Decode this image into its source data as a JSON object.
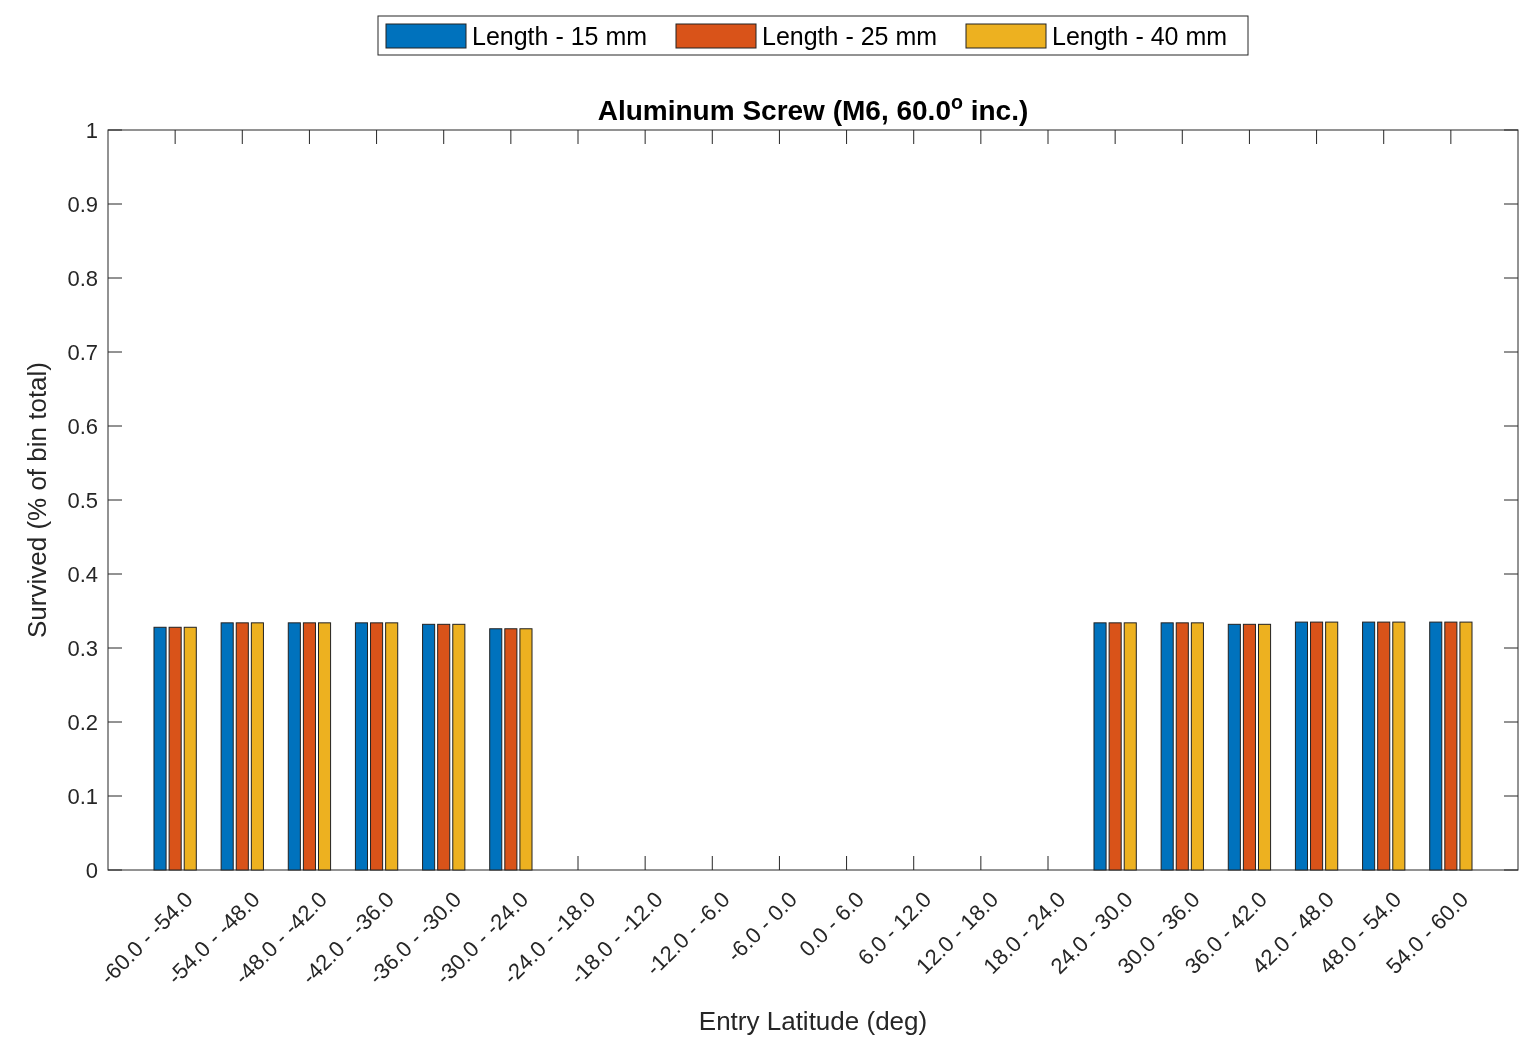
{
  "chart_data": {
    "type": "bar",
    "title": "Aluminum Screw (M6, 60.0$^{o}$ inc.)",
    "xlabel": "Entry Latitude (deg)",
    "ylabel": "Survived (% of bin total)",
    "categories": [
      "-60.0 - -54.0",
      "-54.0 - -48.0",
      "-48.0 - -42.0",
      "-42.0 - -36.0",
      "-36.0 - -30.0",
      "-30.0 - -24.0",
      "-24.0 - -18.0",
      "-18.0 - -12.0",
      "-12.0 - -6.0",
      "-6.0 - 0.0",
      "0.0 - 6.0",
      "6.0 - 12.0",
      "12.0 - 18.0",
      "18.0 - 24.0",
      "24.0 - 30.0",
      "30.0 - 36.0",
      "36.0 - 42.0",
      "42.0 - 48.0",
      "48.0 - 54.0",
      "54.0 - 60.0"
    ],
    "series": [
      {
        "name": "Length - 15 mm",
        "color": "#0072bd",
        "values": [
          0.328,
          0.334,
          0.334,
          0.334,
          0.332,
          0.326,
          0,
          0,
          0,
          0,
          0,
          0,
          0,
          0,
          0.334,
          0.334,
          0.332,
          0.335,
          0.335,
          0.335
        ]
      },
      {
        "name": "Length - 25 mm",
        "color": "#d95319",
        "values": [
          0.328,
          0.334,
          0.334,
          0.334,
          0.332,
          0.326,
          0,
          0,
          0,
          0,
          0,
          0,
          0,
          0,
          0.334,
          0.334,
          0.332,
          0.335,
          0.335,
          0.335
        ]
      },
      {
        "name": "Length - 40 mm",
        "color": "#edb120",
        "values": [
          0.328,
          0.334,
          0.334,
          0.334,
          0.332,
          0.326,
          0,
          0,
          0,
          0,
          0,
          0,
          0,
          0,
          0.334,
          0.334,
          0.332,
          0.335,
          0.335,
          0.335
        ]
      }
    ],
    "ylim": [
      0,
      1
    ],
    "yticks": [
      0,
      0.1,
      0.2,
      0.3,
      0.4,
      0.5,
      0.6,
      0.7,
      0.8,
      0.9,
      1
    ],
    "grid": false,
    "legend": "top"
  }
}
